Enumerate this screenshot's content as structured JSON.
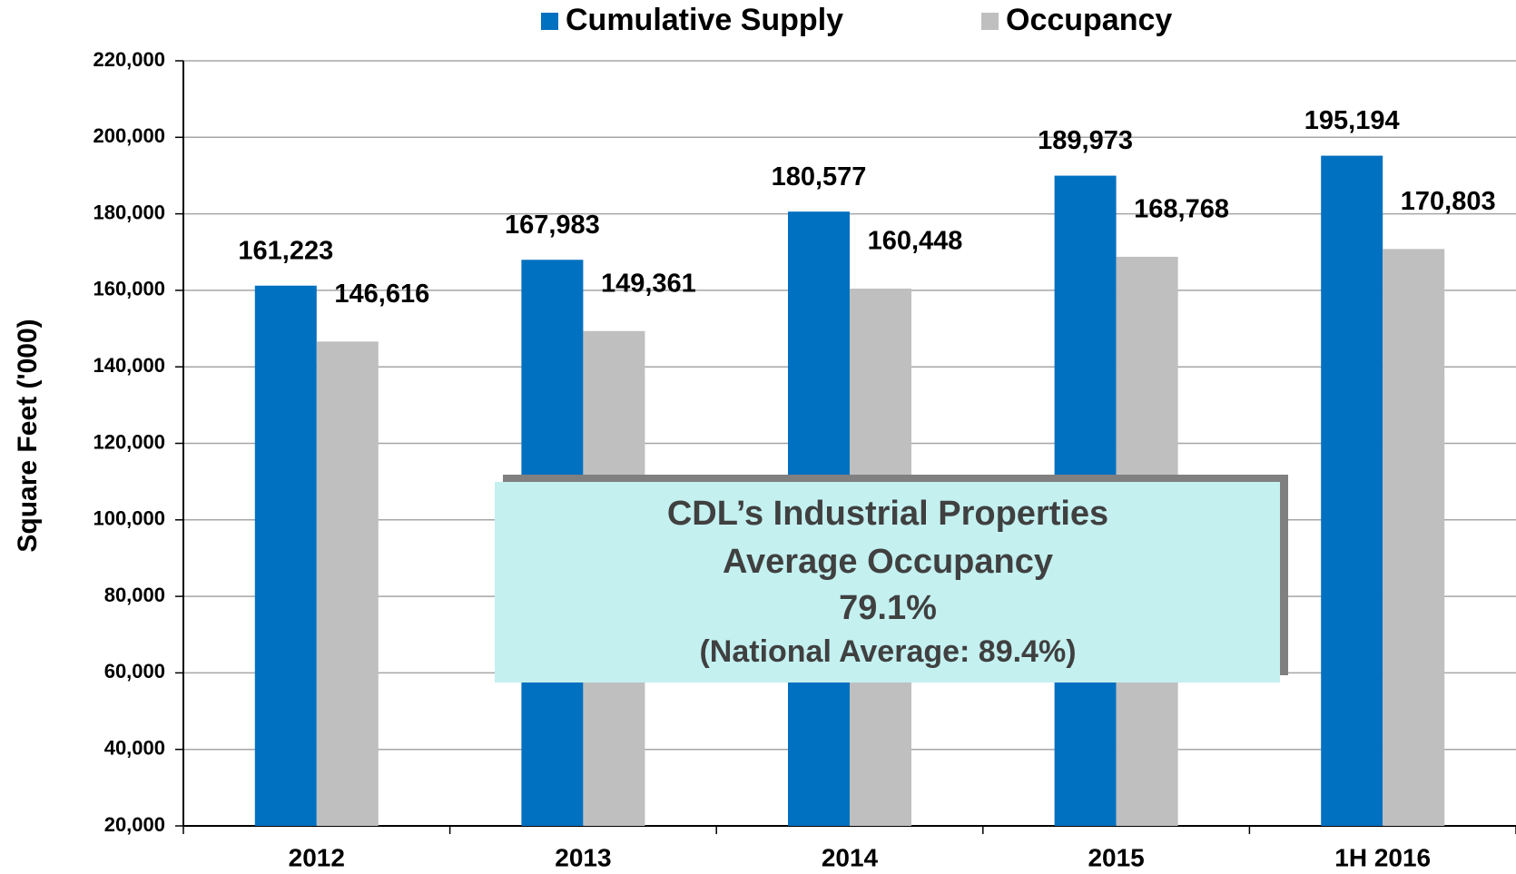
{
  "chart_data": {
    "type": "bar",
    "y_label": "Square Feet ('000)",
    "categories": [
      "2012",
      "2013",
      "2014",
      "2015",
      "1H 2016"
    ],
    "series": [
      {
        "name": "Cumulative Supply",
        "color": "#0070c0",
        "values": [
          161223,
          167983,
          180577,
          189973,
          195194
        ],
        "value_labels": [
          "161,223",
          "167,983",
          "180,577",
          "189,973",
          "195,194"
        ]
      },
      {
        "name": "Occupancy",
        "color": "#bfbfbf",
        "values": [
          146616,
          149361,
          160448,
          168768,
          170803
        ],
        "value_labels": [
          "146,616",
          "149,361",
          "160,448",
          "168,768",
          "170,803"
        ]
      }
    ],
    "ylim": [
      20000,
      220000
    ],
    "yticks": [
      {
        "value": 20000,
        "label": "20,000"
      },
      {
        "value": 40000,
        "label": "40,000"
      },
      {
        "value": 60000,
        "label": "60,000"
      },
      {
        "value": 80000,
        "label": "80,000"
      },
      {
        "value": 100000,
        "label": "100,000"
      },
      {
        "value": 120000,
        "label": "120,000"
      },
      {
        "value": 140000,
        "label": "140,000"
      },
      {
        "value": 160000,
        "label": "160,000"
      },
      {
        "value": 180000,
        "label": "180,000"
      },
      {
        "value": 200000,
        "label": "200,000"
      },
      {
        "value": 220000,
        "label": "220,000"
      }
    ],
    "grid": true,
    "legend": "top",
    "annotation": [
      "CDL’s Industrial Properties",
      "Average Occupancy",
      "79.1%",
      "(National Average: 89.4%)"
    ]
  }
}
